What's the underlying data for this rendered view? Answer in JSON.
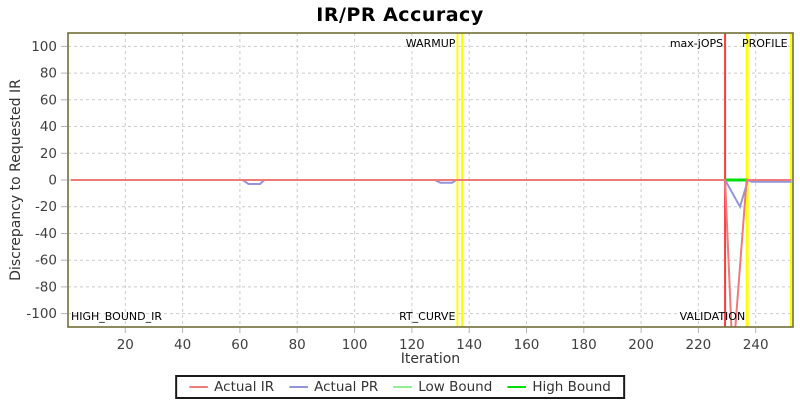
{
  "title": "IR/PR Accuracy",
  "chart_data": {
    "type": "line",
    "title": "IR/PR Accuracy",
    "xlabel": "Iteration",
    "ylabel": "Discrepancy to Requested IR",
    "xlim": [
      0,
      253
    ],
    "ylim": [
      -110,
      110
    ],
    "x_ticks": [
      20,
      40,
      60,
      80,
      100,
      120,
      140,
      160,
      180,
      200,
      220,
      240
    ],
    "y_ticks": [
      -100,
      -80,
      -60,
      -40,
      -20,
      0,
      20,
      40,
      60,
      80,
      100
    ],
    "grid": true,
    "legend_position": "bottom",
    "series": [
      {
        "name": "Actual IR",
        "color": "#ee7a7a",
        "stroke_width": 2,
        "points": [
          [
            1,
            0
          ],
          [
            229.3,
            0
          ],
          [
            232,
            -135
          ],
          [
            236.8,
            0
          ],
          [
            252.5,
            0
          ]
        ]
      },
      {
        "name": "Actual PR",
        "color": "#9494dd",
        "stroke_width": 2,
        "points": [
          [
            1,
            0
          ],
          [
            61,
            0
          ],
          [
            63,
            -3
          ],
          [
            67,
            -3
          ],
          [
            68.5,
            0
          ],
          [
            128,
            0
          ],
          [
            130,
            -2
          ],
          [
            134,
            -2
          ],
          [
            135.5,
            0
          ],
          [
            229.3,
            0
          ],
          [
            234.5,
            -20
          ],
          [
            237.3,
            0
          ],
          [
            238.5,
            -1.3
          ],
          [
            252.5,
            -1.3
          ]
        ]
      },
      {
        "name": "Low Bound",
        "color": "#90ee90",
        "stroke_width": 2,
        "points": [
          [
            229.3,
            0
          ],
          [
            237,
            0
          ]
        ]
      },
      {
        "name": "High Bound",
        "color": "#00dd00",
        "stroke_width": 3,
        "points": [
          [
            229.3,
            0
          ],
          [
            237,
            0
          ]
        ]
      }
    ],
    "markers": [
      {
        "name": "warmup-line-1",
        "x": 135.9,
        "color": "#ffff00",
        "width": 2
      },
      {
        "name": "warmup-line-2",
        "x": 137.5,
        "color": "#ffff00",
        "width": 2
      },
      {
        "name": "max-jops-line",
        "x": 229.3,
        "color": "#ff3838",
        "width": 2
      },
      {
        "name": "profile-line",
        "x": 237.0,
        "color": "#ffff00",
        "width": 3
      },
      {
        "name": "end-line",
        "x": 252.3,
        "color": "#ffff00",
        "width": 2
      }
    ],
    "annotations": [
      {
        "text": "WARMUP",
        "x": 135.9,
        "v": "top",
        "align": "right"
      },
      {
        "text": "max-jOPS",
        "x": 229.3,
        "v": "top",
        "align": "right"
      },
      {
        "text": "PROFILE",
        "x": 251.8,
        "v": "top",
        "align": "right"
      },
      {
        "text": "HIGH_BOUND_IR",
        "x": 0.7,
        "v": "bottom",
        "align": "left"
      },
      {
        "text": "RT_CURVE",
        "x": 135.9,
        "v": "bottom",
        "align": "right"
      },
      {
        "text": "VALIDATION",
        "x": 237.0,
        "v": "bottom",
        "align": "right"
      }
    ]
  },
  "colors": {
    "grid": "#cccccc",
    "plot_border": "#6f6f38",
    "tick_mark": "#b4b4b4",
    "tick_text": "#404040",
    "axis_text": "#333333",
    "annotation_text": "#000000",
    "title_text": "#000000"
  }
}
